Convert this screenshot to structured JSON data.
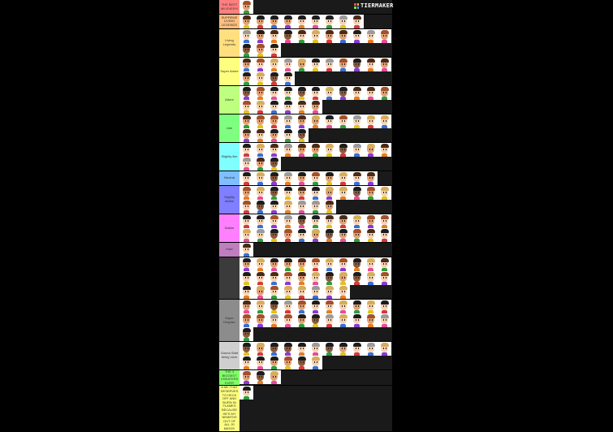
{
  "brand": {
    "name": "TIERMAKER",
    "colors": [
      "#e84c4c",
      "#f2b233",
      "#7ed957",
      "#4aa3df"
    ]
  },
  "palette": {
    "skin": {
      "l": "#f6d3b3",
      "t": "#e3a274",
      "d": "#8b5a3c"
    },
    "hair": {
      "b": "#4a2a16",
      "k": "#1c1c1c",
      "y": "#d6ad5c",
      "g": "#9b9b9b",
      "r": "#a4502a"
    },
    "shirt": [
      "#2e9e3c",
      "#e3c21a",
      "#d63a3a",
      "#3a6fd6",
      "#8a3ad6",
      "#e67e22",
      "#e84c9a"
    ]
  },
  "tiers": [
    {
      "label": "THE BEST MII EVER!!!",
      "color": "#ff7f7f",
      "miis": [
        "tr"
      ]
    },
    {
      "label": "SUPREME LIVING LEGENDS",
      "color": "#ffbf7f",
      "miis": [
        "tb",
        "tk",
        "tk",
        "tk",
        "lk",
        "lk",
        "lk",
        "lg",
        "lb"
      ]
    },
    {
      "label": "Living Legends",
      "color": "#ffdf7f",
      "miis": [
        "lg",
        "tk",
        "lb",
        "dk",
        "lb",
        "ly",
        "tb",
        "tb",
        "lk",
        "lg",
        "tr",
        "dk",
        "tr",
        "lk"
      ]
    },
    {
      "label": "Super Adore",
      "color": "#ffff7f",
      "miis": [
        "tb",
        "lr",
        "ly",
        "lg",
        "ty",
        "lk",
        "lg",
        "tr",
        "dk",
        "lb",
        "tb",
        "tk",
        "ly",
        "dk",
        "lk"
      ]
    },
    {
      "label": "Adore",
      "color": "#bfff7f",
      "miis": [
        "dk",
        "tr",
        "lk",
        "lk",
        "dk",
        "lk",
        "ly",
        "dk",
        "lb",
        "lb",
        "tr",
        "lr",
        "ly",
        "lk",
        "lk",
        "lb",
        "tb"
      ]
    },
    {
      "label": "Like",
      "color": "#7fff7f",
      "miis": [
        "tb",
        "tr",
        "tr",
        "lg",
        "tb",
        "ty",
        "lk",
        "lr",
        "lg",
        "ly",
        "ly",
        "tb",
        "lb",
        "tk",
        "lk",
        "dk"
      ]
    },
    {
      "label": "Slightly like",
      "color": "#7fffff",
      "miis": [
        "lk",
        "ly",
        "lb",
        "lg",
        "tb",
        "tb",
        "ly",
        "dk",
        "lg",
        "ty",
        "lb",
        "lg",
        "tb",
        "dk"
      ]
    },
    {
      "label": "Neutral",
      "color": "#7fbfff",
      "miis": [
        "lk",
        "ly",
        "dk",
        "lg",
        "tk",
        "lr",
        "tk",
        "ly",
        "lb",
        "tb"
      ]
    },
    {
      "label": "Slightly dislike",
      "color": "#7f7fff",
      "miis": [
        "tr",
        "ly",
        "dk",
        "lk",
        "tb",
        "lk",
        "ty",
        "ly",
        "dk",
        "tr",
        "ly",
        "lr",
        "dk",
        "lk",
        "ly",
        "lg",
        "lg",
        "tb"
      ]
    },
    {
      "label": "Dislike",
      "color": "#ff7fff",
      "miis": [
        "lk",
        "lk",
        "lr",
        "lg",
        "dk",
        "lk",
        "lb",
        "tb",
        "ly",
        "tr",
        "lr",
        "ly",
        "lg",
        "dk",
        "tr",
        "lk",
        "ty",
        "dk",
        "tk",
        "tr",
        "lb",
        "lk"
      ]
    },
    {
      "label": "Hate",
      "color": "#bf7fbf",
      "miis": [
        "lb"
      ]
    },
    {
      "label": "",
      "color": "#3b3b3b",
      "miis": [
        "tk",
        "ly",
        "tk",
        "tk",
        "tb",
        "lr",
        "ly",
        "lr",
        "dk",
        "ly",
        "lb",
        "lk",
        "lb",
        "lb",
        "lr",
        "tb",
        "ly",
        "dk",
        "ty",
        "dk",
        "ly",
        "lr",
        "lk",
        "ty",
        "lr",
        "ly",
        "ly",
        "lg",
        "ly",
        "ly"
      ]
    },
    {
      "label": "Super Despise",
      "color": "#8c8c8c",
      "miis": [
        "tb",
        "ly",
        "dk",
        "lg",
        "tr",
        "lk",
        "lr",
        "ly",
        "tk",
        "ly",
        "lk",
        "tr",
        "tr",
        "lg",
        "lr",
        "tk",
        "dk",
        "lg",
        "ly",
        "lk",
        "tr",
        "lg",
        "dk"
      ]
    },
    {
      "label": "Gonna Start being nicer",
      "color": "#cfcfcf",
      "miis": [
        "dk",
        "ty",
        "dk",
        "dk",
        "lk",
        "lg",
        "dk",
        "tk",
        "lk",
        "lg",
        "ly",
        "lk",
        "lk",
        "tk",
        "tr",
        "dk",
        "ly"
      ]
    },
    {
      "label": "THE 3 BIGGEST CHEATERS EVER",
      "color": "#80ff66",
      "miis": [
        "tr",
        "dk",
        "ty"
      ]
    },
    {
      "label": "A MII THAT DESERVES TO HECK OFF AND BURN IN FLAMES BECAUSE HE'S MY NEMESIS OUT OF ALL 20 MIIS!!!!!",
      "color": "#ffff7f",
      "miis": [
        "lk"
      ]
    }
  ]
}
